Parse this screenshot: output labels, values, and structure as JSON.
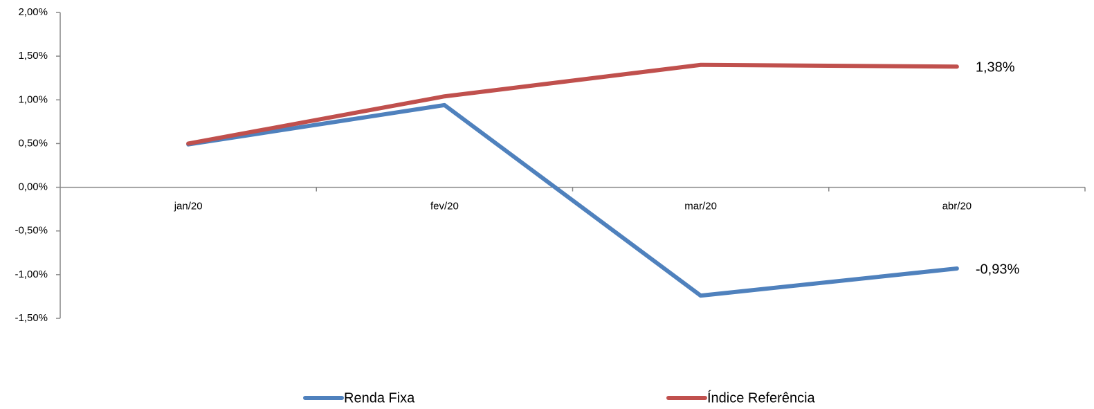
{
  "chart_data": {
    "type": "line",
    "categories": [
      "jan/20",
      "fev/20",
      "mar/20",
      "abr/20"
    ],
    "series": [
      {
        "name": "Renda Fixa",
        "color": "#4f81bd",
        "values": [
          0.49,
          0.94,
          -1.24,
          -0.93
        ],
        "value_labels": [
          null,
          null,
          null,
          "-0,93%"
        ]
      },
      {
        "name": "Índice Referência",
        "color": "#c0504d",
        "values": [
          0.5,
          1.04,
          1.4,
          1.38
        ],
        "value_labels": [
          null,
          null,
          null,
          "1,38%"
        ]
      }
    ],
    "ylim": [
      -1.5,
      2.0
    ],
    "yticks": [
      {
        "value": -1.5,
        "label": "-1,50%"
      },
      {
        "value": -1.0,
        "label": "-1,00%"
      },
      {
        "value": -0.5,
        "label": "-0,50%"
      },
      {
        "value": 0.0,
        "label": "0,00%"
      },
      {
        "value": 0.5,
        "label": "0,50%"
      },
      {
        "value": 1.0,
        "label": "1,00%"
      },
      {
        "value": 1.5,
        "label": "1,50%"
      },
      {
        "value": 2.0,
        "label": "2,00%"
      }
    ],
    "legend": "bottom"
  }
}
